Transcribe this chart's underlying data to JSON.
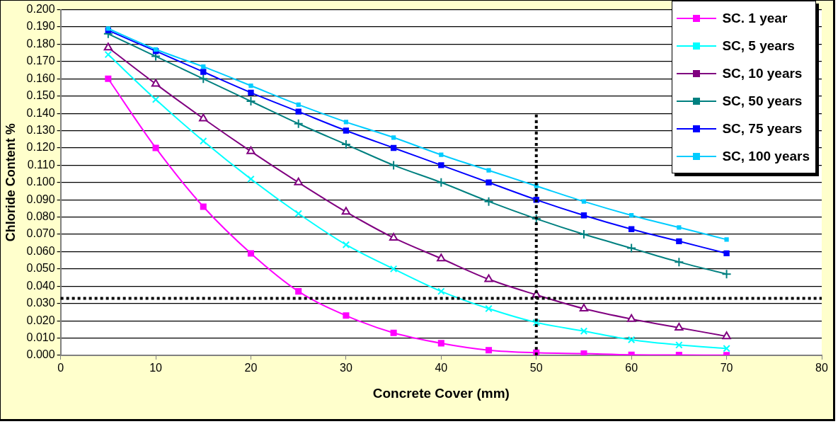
{
  "chart_data": {
    "type": "line",
    "xlabel": "Concrete Cover (mm)",
    "ylabel": "Chloride Content %",
    "x": [
      5,
      10,
      15,
      20,
      25,
      30,
      35,
      40,
      45,
      50,
      55,
      60,
      65,
      70
    ],
    "series": [
      {
        "name": "SC. 1 year",
        "color": "#ff00ff",
        "marker": "square",
        "values": [
          0.16,
          0.12,
          0.086,
          0.059,
          0.037,
          0.023,
          0.013,
          0.007,
          0.003,
          0.0015,
          0.001,
          0.0003,
          0.0002,
          0.0001
        ]
      },
      {
        "name": "SC, 5 years",
        "color": "#00ffff",
        "marker": "cross",
        "values": [
          0.174,
          0.148,
          0.124,
          0.102,
          0.082,
          0.064,
          0.05,
          0.037,
          0.027,
          0.019,
          0.014,
          0.009,
          0.006,
          0.004
        ]
      },
      {
        "name": "SC, 10 years",
        "color": "#800080",
        "marker": "triangle",
        "values": [
          0.178,
          0.157,
          0.137,
          0.118,
          0.1,
          0.083,
          0.068,
          0.056,
          0.044,
          0.035,
          0.027,
          0.021,
          0.016,
          0.011
        ]
      },
      {
        "name": "SC, 50 years",
        "color": "#008080",
        "marker": "cross",
        "values": [
          0.186,
          0.173,
          0.16,
          0.147,
          0.134,
          0.122,
          0.11,
          0.1,
          0.089,
          0.079,
          0.07,
          0.062,
          0.054,
          0.047
        ]
      },
      {
        "name": "SC, 75 years",
        "color": "#0000ff",
        "marker": "square",
        "values": [
          0.188,
          0.176,
          0.164,
          0.152,
          0.141,
          0.13,
          0.12,
          0.11,
          0.1,
          0.09,
          0.081,
          0.073,
          0.066,
          0.059
        ]
      },
      {
        "name": "SC, 100 years",
        "color": "#00ccff",
        "marker": "square",
        "values": [
          0.189,
          0.177,
          0.167,
          0.156,
          0.145,
          0.135,
          0.126,
          0.116,
          0.107,
          0.098,
          0.089,
          0.081,
          0.074,
          0.067
        ]
      },
      {
        "type": "line",
        "color": "#000000",
        "marker": "none",
        "line_style": "dotted",
        "x": [
          50,
          50
        ],
        "values": [
          0,
          0.14
        ]
      }
    ],
    "ref_lines": [
      {
        "axis": "y",
        "value": 0.033,
        "color": "#000000",
        "line_style": "dotted"
      }
    ],
    "xlim": [
      0,
      80
    ],
    "xticks": [
      0,
      10,
      20,
      30,
      40,
      50,
      60,
      70,
      80
    ],
    "ylim": [
      0,
      0.2
    ],
    "yticks": [
      {
        "value": 0,
        "label": "0.000"
      },
      {
        "value": 0.01,
        "label": "0.010"
      },
      {
        "value": 0.02,
        "label": "0.020"
      },
      {
        "value": 0.03,
        "label": "0.030"
      },
      {
        "value": 0.04,
        "label": "0.040"
      },
      {
        "value": 0.05,
        "label": "0.050"
      },
      {
        "value": 0.06,
        "label": "0.060"
      },
      {
        "value": 0.07,
        "label": "0.070"
      },
      {
        "value": 0.08,
        "label": "0.080"
      },
      {
        "value": 0.09,
        "label": "0.090"
      },
      {
        "value": 0.1,
        "label": "0.100"
      },
      {
        "value": 0.11,
        "label": "0.110"
      },
      {
        "value": 0.12,
        "label": "0.120"
      },
      {
        "value": 0.13,
        "label": "0.130"
      },
      {
        "value": 0.14,
        "label": "0.140"
      },
      {
        "value": 0.15,
        "label": "0.150"
      },
      {
        "value": 0.16,
        "label": "0.160"
      },
      {
        "value": 0.17,
        "label": "0.170"
      },
      {
        "value": 0.18,
        "label": "0.180"
      },
      {
        "value": 0.19,
        "label": "0.190"
      },
      {
        "value": 0.2,
        "label": "0.200"
      }
    ],
    "grid": "y",
    "legend": "top right"
  }
}
